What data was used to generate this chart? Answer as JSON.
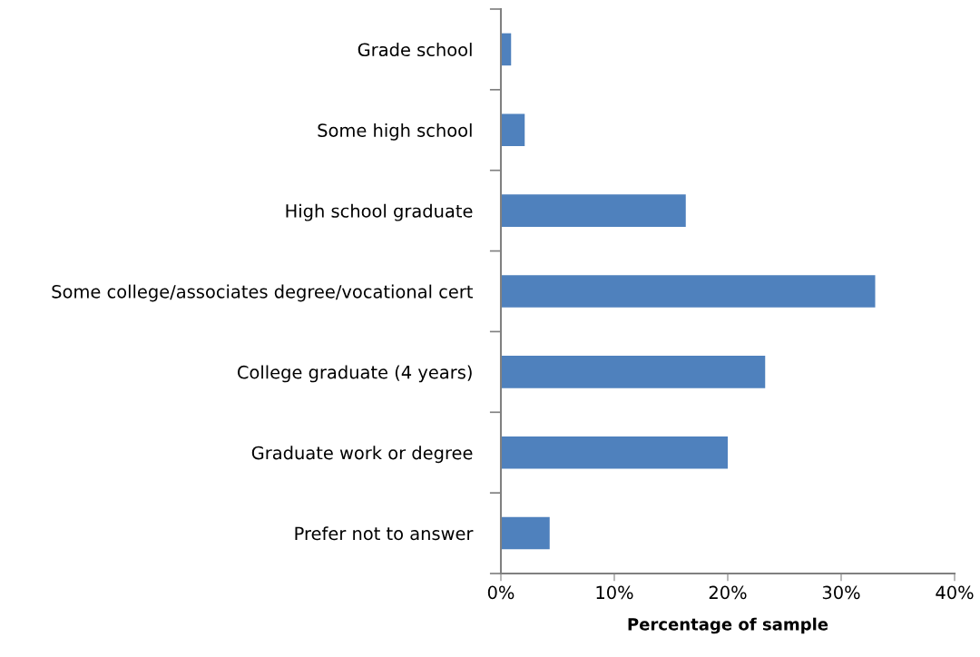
{
  "chart_data": {
    "type": "bar",
    "orientation": "horizontal",
    "categories": [
      "Grade school",
      "Some high school",
      "High school graduate",
      "Some college/associates degree/vocational cert",
      "College graduate (4 years)",
      "Graduate work or degree",
      "Prefer not to answer"
    ],
    "values": [
      0.9,
      2.1,
      16.3,
      33.0,
      23.3,
      20.0,
      4.3
    ],
    "color": "#4f81bd",
    "xlabel": "Percentage of sample",
    "xlim": [
      0,
      40
    ],
    "xticks": [
      {
        "value": 0,
        "label": "0%"
      },
      {
        "value": 10,
        "label": "10%"
      },
      {
        "value": 20,
        "label": "20%"
      },
      {
        "value": 30,
        "label": "30%"
      },
      {
        "value": 40,
        "label": "40%"
      }
    ],
    "grid": false,
    "legend": false
  }
}
